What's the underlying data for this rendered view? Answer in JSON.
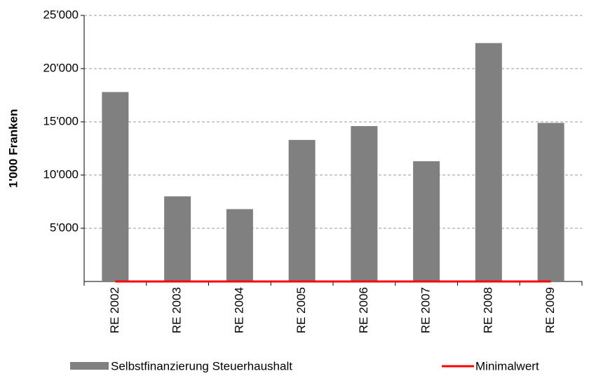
{
  "chart_data": {
    "type": "bar",
    "ylabel": "1'000 Franken",
    "categories": [
      "RE 2002",
      "RE 2003",
      "RE 2004",
      "RE 2005",
      "RE 2006",
      "RE 2007",
      "RE 2008",
      "RE 2009"
    ],
    "series": [
      {
        "name": "Selbstfinanzierung Steuerhaushalt",
        "type": "bar",
        "color": "#808080",
        "values": [
          17800,
          8000,
          6800,
          13300,
          14600,
          11300,
          22400,
          14900
        ]
      },
      {
        "name": "Minimalwert",
        "type": "line",
        "color": "#ff0000",
        "values": [
          0,
          0,
          0,
          0,
          0,
          0,
          0,
          0
        ]
      }
    ],
    "ylim": [
      0,
      25000
    ],
    "yticks": [
      {
        "value": 5000,
        "label": "5'000"
      },
      {
        "value": 10000,
        "label": "10'000"
      },
      {
        "value": 15000,
        "label": "15'000"
      },
      {
        "value": 20000,
        "label": "20'000"
      },
      {
        "value": 25000,
        "label": "25'000"
      }
    ],
    "grid": true
  }
}
